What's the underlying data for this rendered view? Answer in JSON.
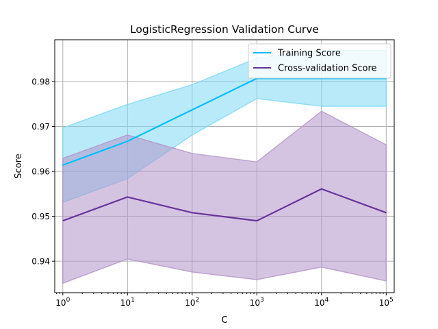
{
  "chart_data": {
    "type": "line",
    "title": "LogisticRegression Validation Curve",
    "xlabel": "C",
    "ylabel": "Score",
    "x_scale": "log",
    "x": [
      1,
      10,
      100,
      1000,
      10000,
      100000
    ],
    "x_tick_labels": [
      {
        "base": "10",
        "exp": "0"
      },
      {
        "base": "10",
        "exp": "1"
      },
      {
        "base": "10",
        "exp": "2"
      },
      {
        "base": "10",
        "exp": "3"
      },
      {
        "base": "10",
        "exp": "4"
      },
      {
        "base": "10",
        "exp": "5"
      }
    ],
    "y_ticks": [
      0.94,
      0.95,
      0.96,
      0.97,
      0.98
    ],
    "y_tick_labels": [
      "0.94",
      "0.95",
      "0.96",
      "0.97",
      "0.98"
    ],
    "xlim": [
      0.75,
      133000
    ],
    "ylim": [
      0.933,
      0.9893
    ],
    "grid": true,
    "legend_position": "top-right",
    "series": [
      {
        "name": "Training Score",
        "color": "#00bfff",
        "band_color": "#7fd8f5",
        "values": [
          0.9614,
          0.9667,
          0.9737,
          0.9807,
          0.9807,
          0.9807
        ],
        "band_lower": [
          0.9531,
          0.9584,
          0.9681,
          0.9762,
          0.9745,
          0.9745
        ],
        "band_upper": [
          0.9697,
          0.9749,
          0.9793,
          0.9852,
          0.9869,
          0.9869
        ]
      },
      {
        "name": "Cross-validation Score",
        "color": "#663399",
        "band_color": "#b393c9",
        "values": [
          0.949,
          0.9543,
          0.9508,
          0.949,
          0.9561,
          0.9508
        ],
        "band_lower": [
          0.9351,
          0.9405,
          0.9376,
          0.9359,
          0.9387,
          0.9356
        ],
        "band_upper": [
          0.9629,
          0.9681,
          0.964,
          0.9621,
          0.9734,
          0.9659
        ]
      }
    ]
  }
}
